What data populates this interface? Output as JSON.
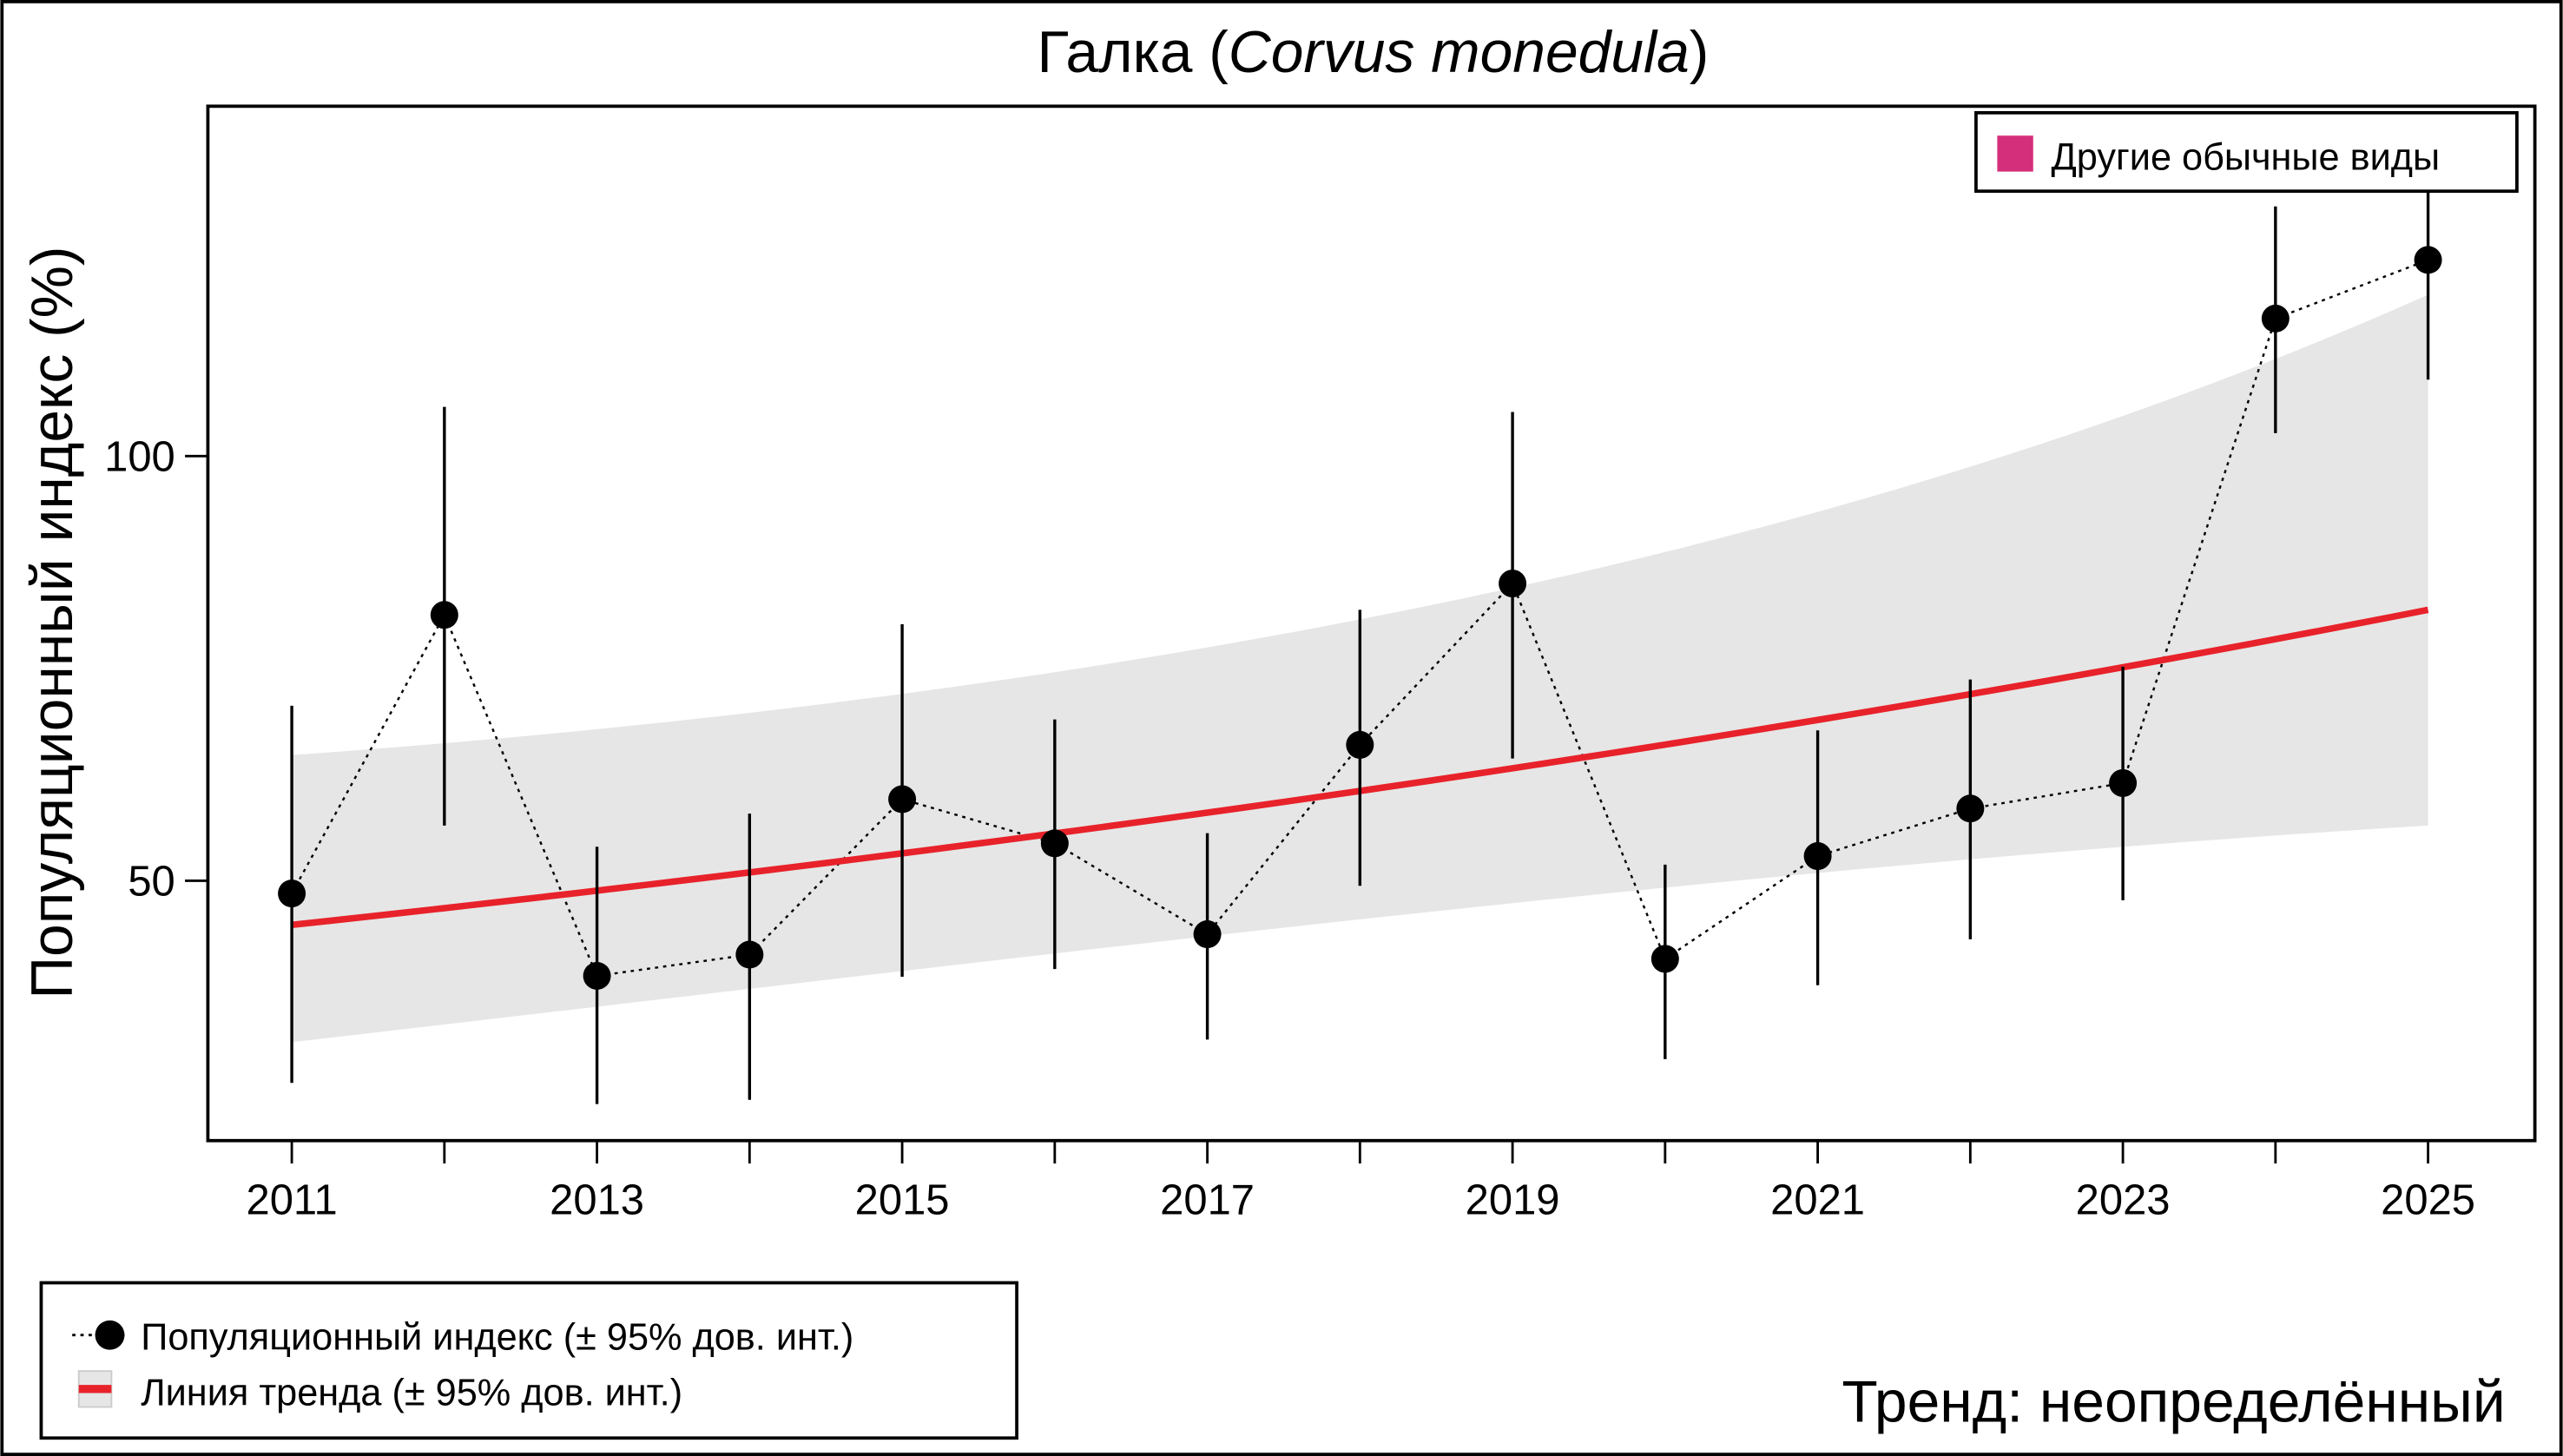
{
  "chart_data": {
    "type": "line",
    "title_plain": "Галка (",
    "title_italic": "Corvus monedula",
    "title_close": ")",
    "xlabel": "",
    "ylabel": "Популяционный индекс (%)",
    "xlim": [
      2010.45,
      2025.7
    ],
    "ylim": [
      19.4,
      141.2
    ],
    "x_ticks": [
      2011,
      2012,
      2013,
      2014,
      2015,
      2016,
      2017,
      2018,
      2019,
      2020,
      2021,
      2022,
      2023,
      2024,
      2025
    ],
    "x_tick_labels": [
      "2011",
      "",
      "2013",
      "",
      "2015",
      "",
      "2017",
      "",
      "2019",
      "",
      "2021",
      "",
      "2023",
      "",
      "2025"
    ],
    "y_ticks": [
      50,
      100
    ],
    "y_tick_labels": [
      "50",
      "100"
    ],
    "grid": false,
    "series": [
      {
        "name": "Популяционный индекс (± 95% дов. инт.)",
        "x": [
          2011,
          2012,
          2013,
          2014,
          2015,
          2016,
          2017,
          2018,
          2019,
          2020,
          2021,
          2022,
          2023,
          2024,
          2025
        ],
        "y": [
          48.5,
          81.3,
          38.8,
          41.3,
          59.6,
          54.4,
          43.7,
          66.0,
          85.0,
          40.8,
          52.9,
          58.5,
          61.5,
          116.2,
          123.1
        ],
        "lower": [
          26.2,
          56.5,
          23.7,
          24.2,
          38.7,
          39.6,
          31.3,
          49.4,
          64.4,
          29.0,
          37.7,
          43.1,
          47.7,
          102.7,
          109.0
        ],
        "upper": [
          70.6,
          105.8,
          54.0,
          57.9,
          80.2,
          69.0,
          55.6,
          81.9,
          105.2,
          51.9,
          67.7,
          73.7,
          75.2,
          129.4,
          134.0
        ],
        "color": "#000000",
        "style": "dotted line with points and error bars"
      },
      {
        "name": "Линия тренда (± 95% дов. инт.)",
        "x": [
          2011,
          2025
        ],
        "trend": [
          44.8,
          81.9
        ],
        "ci_lower": [
          31.0,
          56.5
        ],
        "ci_upper": [
          64.8,
          119.0
        ],
        "color": "#e8222a",
        "ci_color": "#e6e6e6",
        "style": "exponential trend with shaded band"
      }
    ],
    "legend_top": {
      "label": "Другие обычные виды",
      "color": "#d42f7a",
      "placement": "top-right"
    },
    "legend_bottom": {
      "items": [
        "Популяционный индекс (± 95% дов. инт.)",
        "Линия тренда (± 95% дов. инт.)"
      ],
      "placement": "bottom-left"
    },
    "annotation": "Тренд: неопределённый"
  }
}
